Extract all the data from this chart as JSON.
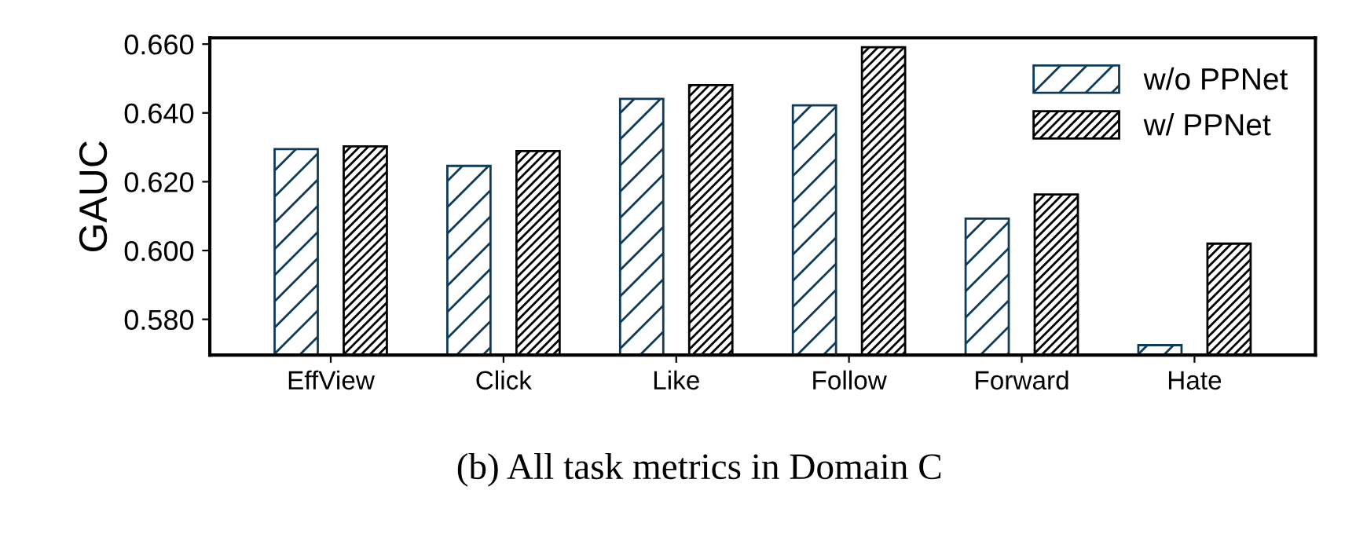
{
  "chart_data": {
    "type": "bar",
    "ylabel": "GAUC",
    "categories": [
      "EffView",
      "Click",
      "Like",
      "Follow",
      "Forward",
      "Hate"
    ],
    "series": [
      {
        "name": "w/o PPNet",
        "color": "#0f3b5a",
        "values": [
          0.6295,
          0.6246,
          0.6441,
          0.6422,
          0.6093,
          0.5725
        ]
      },
      {
        "name": "w/ PPNet",
        "color": "#000000",
        "values": [
          0.6303,
          0.6289,
          0.6481,
          0.6591,
          0.6163,
          0.602
        ]
      }
    ],
    "ylim": [
      0.5696,
      0.6618
    ],
    "yticks": [
      {
        "value": 0.58,
        "label": "0.580"
      },
      {
        "value": 0.6,
        "label": "0.600"
      },
      {
        "value": 0.62,
        "label": "0.620"
      },
      {
        "value": 0.64,
        "label": "0.640"
      },
      {
        "value": 0.66,
        "label": "0.660"
      }
    ],
    "grid": false,
    "legend": "top right",
    "annotations": [
      "(b) All task metrics in Domain C"
    ]
  }
}
